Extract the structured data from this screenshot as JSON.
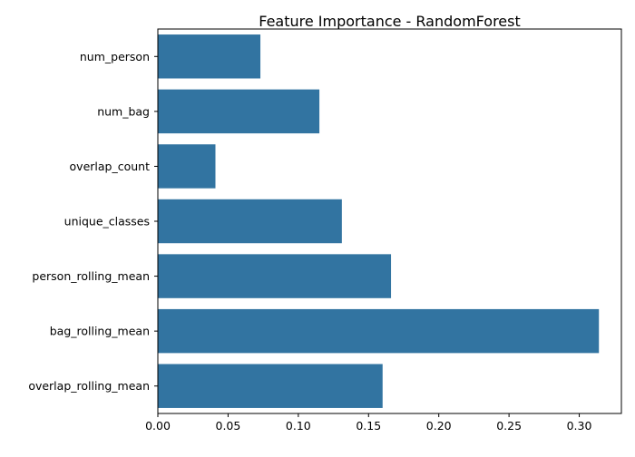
{
  "chart_data": {
    "type": "bar",
    "orientation": "horizontal",
    "title": "Feature Importance - RandomForest",
    "xlabel": "",
    "ylabel": "",
    "categories": [
      "num_person",
      "num_bag",
      "overlap_count",
      "unique_classes",
      "person_rolling_mean",
      "bag_rolling_mean",
      "overlap_rolling_mean"
    ],
    "values": [
      0.073,
      0.115,
      0.041,
      0.131,
      0.166,
      0.314,
      0.16
    ],
    "xlim": [
      0,
      0.33
    ],
    "xticks": [
      0.0,
      0.05,
      0.1,
      0.15,
      0.2,
      0.25,
      0.3
    ],
    "xtick_labels": [
      "0.00",
      "0.05",
      "0.10",
      "0.15",
      "0.20",
      "0.25",
      "0.30"
    ],
    "bar_color": "#3274a1",
    "grid": false,
    "legend": false
  }
}
